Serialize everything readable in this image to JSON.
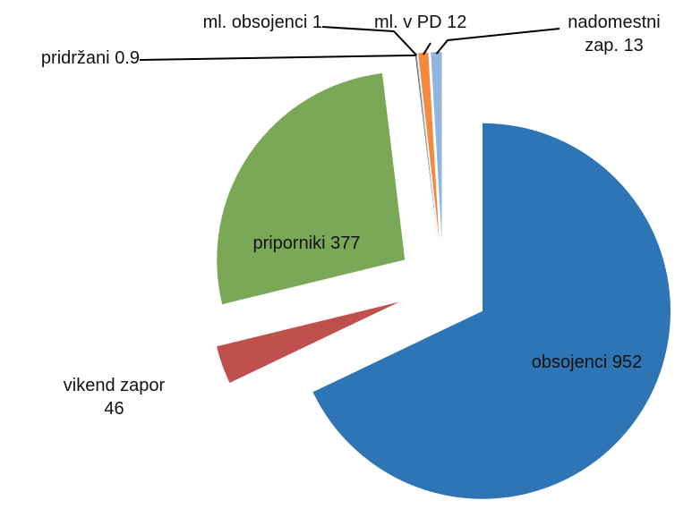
{
  "chart_data": {
    "type": "pie",
    "categories": [
      "obsojenci",
      "vikend zapor",
      "priporniki",
      "pridržani",
      "ml. obsojenci",
      "ml. v PD",
      "nadomestni zap."
    ],
    "values": [
      952,
      46,
      377,
      0.9,
      1,
      12,
      13
    ],
    "colors": [
      "#2e75b6",
      "#c0504d",
      "#7ba857",
      "#264478",
      "#a5a5a5",
      "#f58a3c",
      "#8fb4de"
    ]
  }
}
